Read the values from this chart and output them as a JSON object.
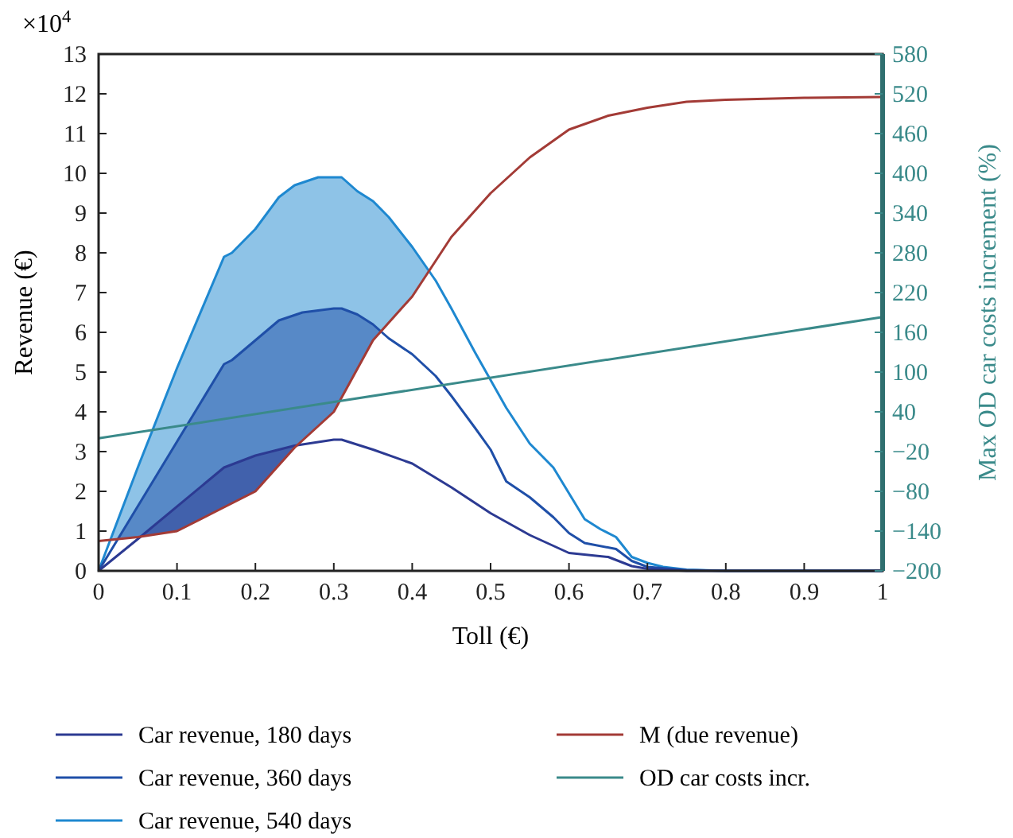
{
  "chart_data": {
    "type": "area",
    "xlabel": "Toll (€)",
    "ylabel": "Revenue (€)",
    "y2label": "Max OD car costs increment (%)",
    "annotations": [
      "×10$^{4}$"
    ],
    "xlim": [
      0,
      1
    ],
    "xticks": [
      0,
      0.1,
      0.2,
      0.3,
      0.4,
      0.5,
      0.6,
      0.7,
      0.8,
      0.9,
      1
    ],
    "ylim": [
      0,
      13
    ],
    "yticks": [
      0,
      1,
      2,
      3,
      4,
      5,
      6,
      7,
      8,
      9,
      10,
      11,
      12,
      13
    ],
    "y2lim": [
      -200,
      580
    ],
    "y2ticks": [
      -200,
      -140,
      -80,
      -20,
      40,
      100,
      160,
      220,
      280,
      340,
      400,
      460,
      520,
      580
    ],
    "grid": false,
    "legend": "bottom",
    "series": [
      {
        "name": "Car revenue, 180 days",
        "color": "#2c3a92",
        "x": [
          0,
          0.05,
          0.16,
          0.2,
          0.25,
          0.3,
          0.31,
          0.35,
          0.4,
          0.45,
          0.5,
          0.55,
          0.6,
          0.65,
          0.68,
          0.7,
          0.75,
          1
        ],
        "values": [
          0,
          0.8,
          2.6,
          2.9,
          3.15,
          3.3,
          3.3,
          3.05,
          2.7,
          2.1,
          1.45,
          0.9,
          0.45,
          0.35,
          0.12,
          0.05,
          0,
          0
        ]
      },
      {
        "name": "Car revenue, 360 days",
        "color": "#1f4fa8",
        "x": [
          0,
          0.16,
          0.17,
          0.2,
          0.23,
          0.26,
          0.3,
          0.31,
          0.33,
          0.35,
          0.37,
          0.4,
          0.43,
          0.45,
          0.48,
          0.5,
          0.52,
          0.55,
          0.58,
          0.6,
          0.62,
          0.66,
          0.68,
          0.7,
          0.75,
          0.8,
          1
        ],
        "values": [
          0,
          5.2,
          5.3,
          5.8,
          6.3,
          6.5,
          6.6,
          6.6,
          6.45,
          6.2,
          5.85,
          5.45,
          4.9,
          4.4,
          3.6,
          3.05,
          2.25,
          1.85,
          1.35,
          0.95,
          0.7,
          0.55,
          0.25,
          0.1,
          0.02,
          0,
          0
        ]
      },
      {
        "name": "Car revenue, 540 days",
        "color": "#1e88d0",
        "x": [
          0,
          0.05,
          0.1,
          0.16,
          0.17,
          0.2,
          0.23,
          0.25,
          0.28,
          0.3,
          0.31,
          0.33,
          0.35,
          0.37,
          0.4,
          0.43,
          0.45,
          0.48,
          0.5,
          0.52,
          0.55,
          0.58,
          0.6,
          0.62,
          0.64,
          0.66,
          0.68,
          0.7,
          0.72,
          0.75,
          0.8,
          1
        ],
        "values": [
          0,
          2.6,
          5.1,
          7.9,
          8.0,
          8.6,
          9.4,
          9.7,
          9.9,
          9.9,
          9.9,
          9.55,
          9.3,
          8.9,
          8.15,
          7.3,
          6.6,
          5.5,
          4.8,
          4.1,
          3.2,
          2.6,
          1.95,
          1.3,
          1.05,
          0.85,
          0.35,
          0.2,
          0.1,
          0.03,
          0,
          0
        ]
      },
      {
        "name": "M (due revenue)",
        "type": "line",
        "color": "#a33b36",
        "x": [
          0,
          0.05,
          0.1,
          0.15,
          0.2,
          0.25,
          0.3,
          0.35,
          0.4,
          0.45,
          0.5,
          0.55,
          0.6,
          0.65,
          0.7,
          0.75,
          0.8,
          0.9,
          1
        ],
        "values": [
          0.75,
          0.85,
          1.0,
          1.5,
          2.0,
          3.1,
          4.0,
          5.8,
          6.9,
          8.4,
          9.5,
          10.4,
          11.1,
          11.45,
          11.65,
          11.8,
          11.85,
          11.9,
          11.92
        ]
      },
      {
        "name": "OD car costs incr.",
        "type": "line",
        "axis": "y2",
        "color": "#3a8a8a",
        "x": [
          0,
          1
        ],
        "values": [
          0,
          183
        ]
      }
    ]
  }
}
